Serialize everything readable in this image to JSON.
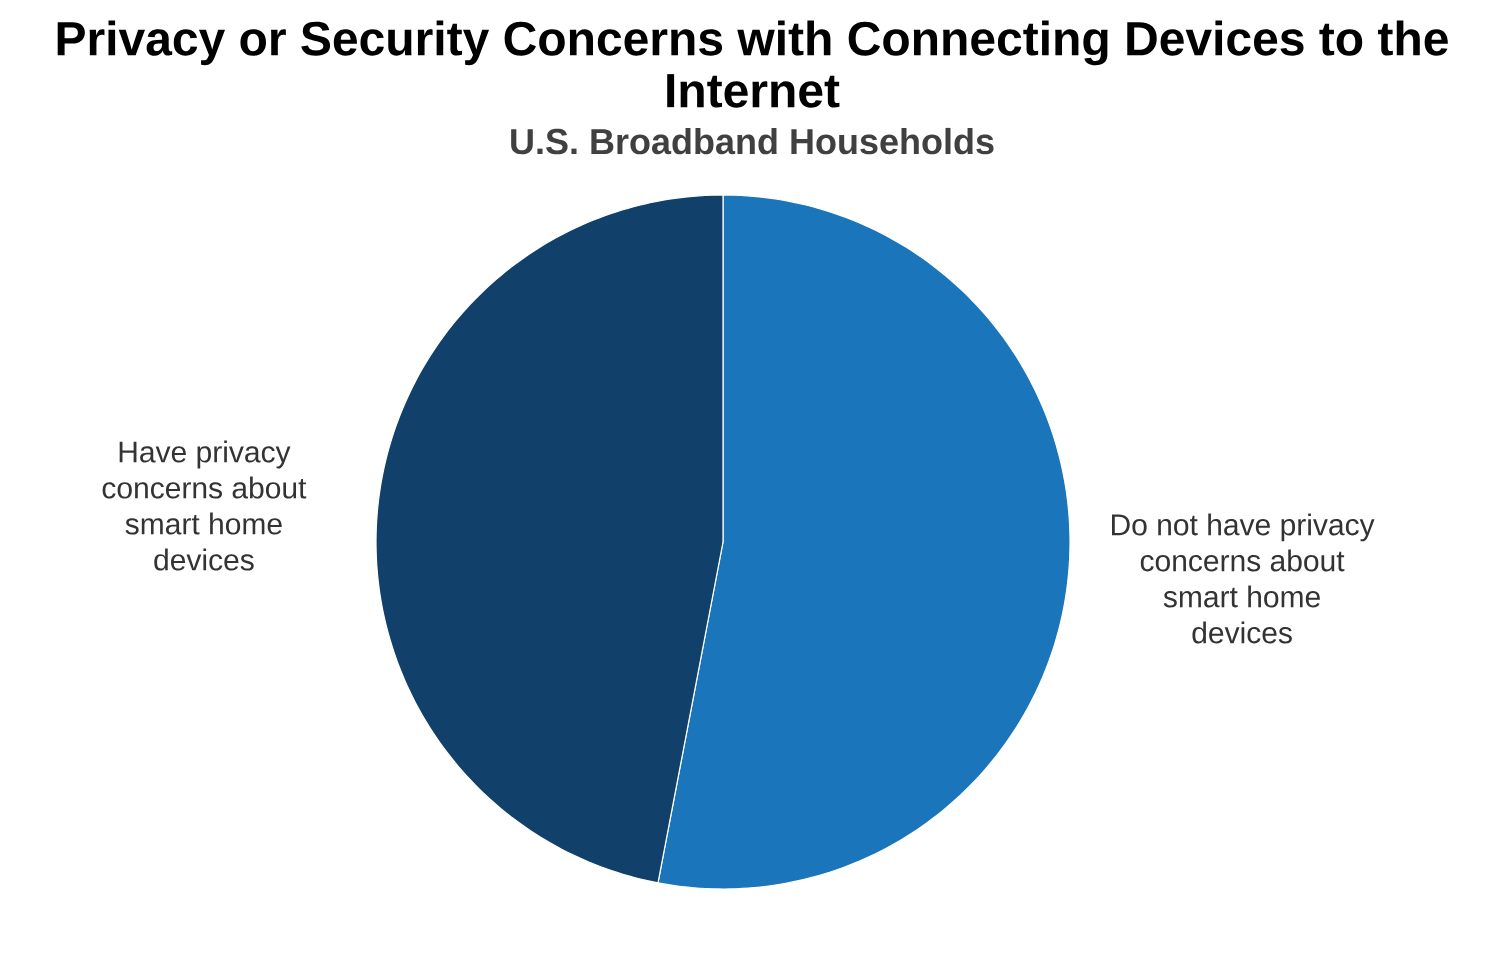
{
  "chart_data": {
    "type": "pie",
    "title": "Privacy or Security Concerns with Connecting Devices to the Internet",
    "subtitle": "U.S. Broadband Households",
    "categories": [
      "Do not have privacy concerns about smart home devices",
      "Have privacy concerns about smart home devices"
    ],
    "values": [
      53,
      47
    ],
    "colors": [
      "#1b75bb",
      "#11416b"
    ]
  }
}
